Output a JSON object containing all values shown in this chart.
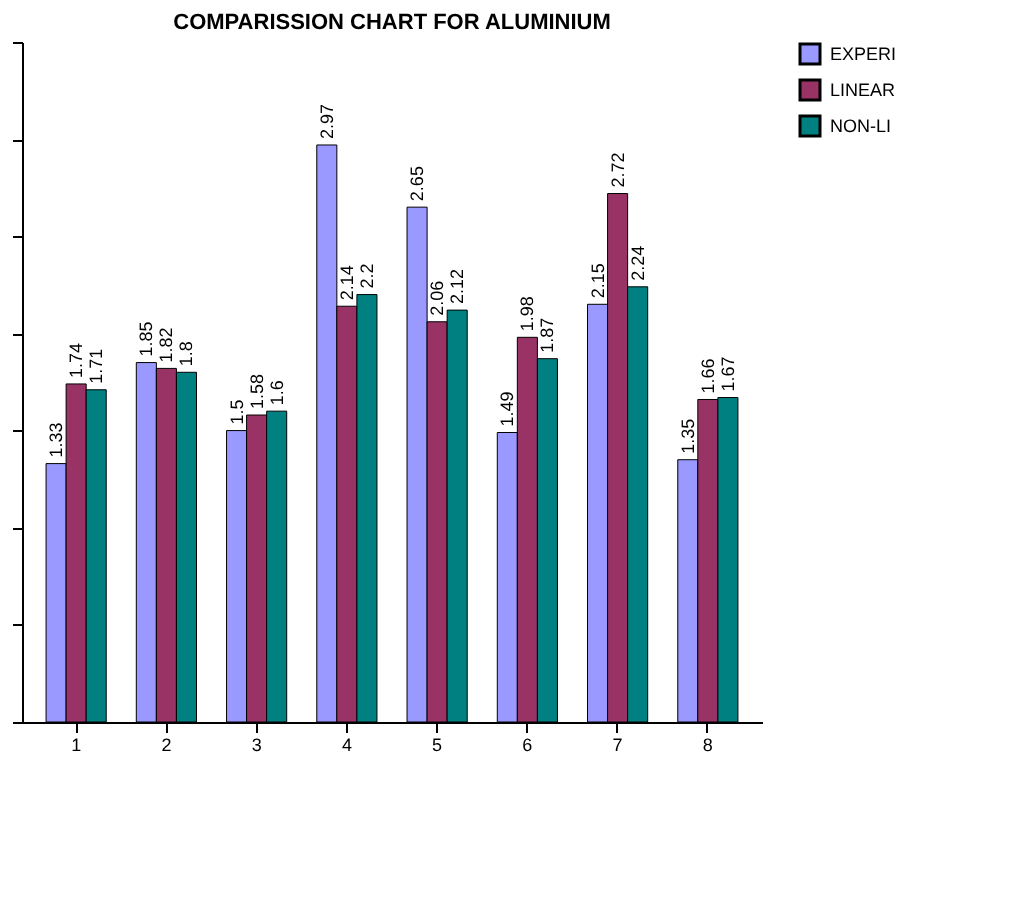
{
  "chart_data": {
    "type": "bar",
    "title": "COMPARISSION CHART FOR ALUMINIUM",
    "categories": [
      "1",
      "2",
      "3",
      "4",
      "5",
      "6",
      "7",
      "8"
    ],
    "series": [
      {
        "name": "EXPERI",
        "color": "#9999ff",
        "values": [
          1.33,
          1.85,
          1.5,
          2.97,
          2.65,
          1.49,
          2.15,
          1.35
        ]
      },
      {
        "name": "LINEAR",
        "color": "#993366",
        "values": [
          1.74,
          1.82,
          1.58,
          2.14,
          2.06,
          1.98,
          2.72,
          1.66
        ]
      },
      {
        "name": "NON-LI",
        "color": "#008080",
        "values": [
          1.71,
          1.8,
          1.6,
          2.2,
          2.12,
          1.87,
          2.24,
          1.67
        ]
      }
    ],
    "ylim": [
      0,
      3.5
    ],
    "yticks": [
      {
        "value": 0,
        "label": null
      },
      {
        "value": 0.5,
        "label": null
      },
      {
        "value": 1,
        "label": null
      },
      {
        "value": 1.5,
        "label": null
      },
      {
        "value": 2,
        "label": null
      },
      {
        "value": 2.5,
        "label": null
      },
      {
        "value": 3,
        "label": null
      },
      {
        "value": 3.5,
        "label": null
      }
    ],
    "tick_labels": "x",
    "data_labels": true,
    "legend": "right",
    "grid": false
  }
}
